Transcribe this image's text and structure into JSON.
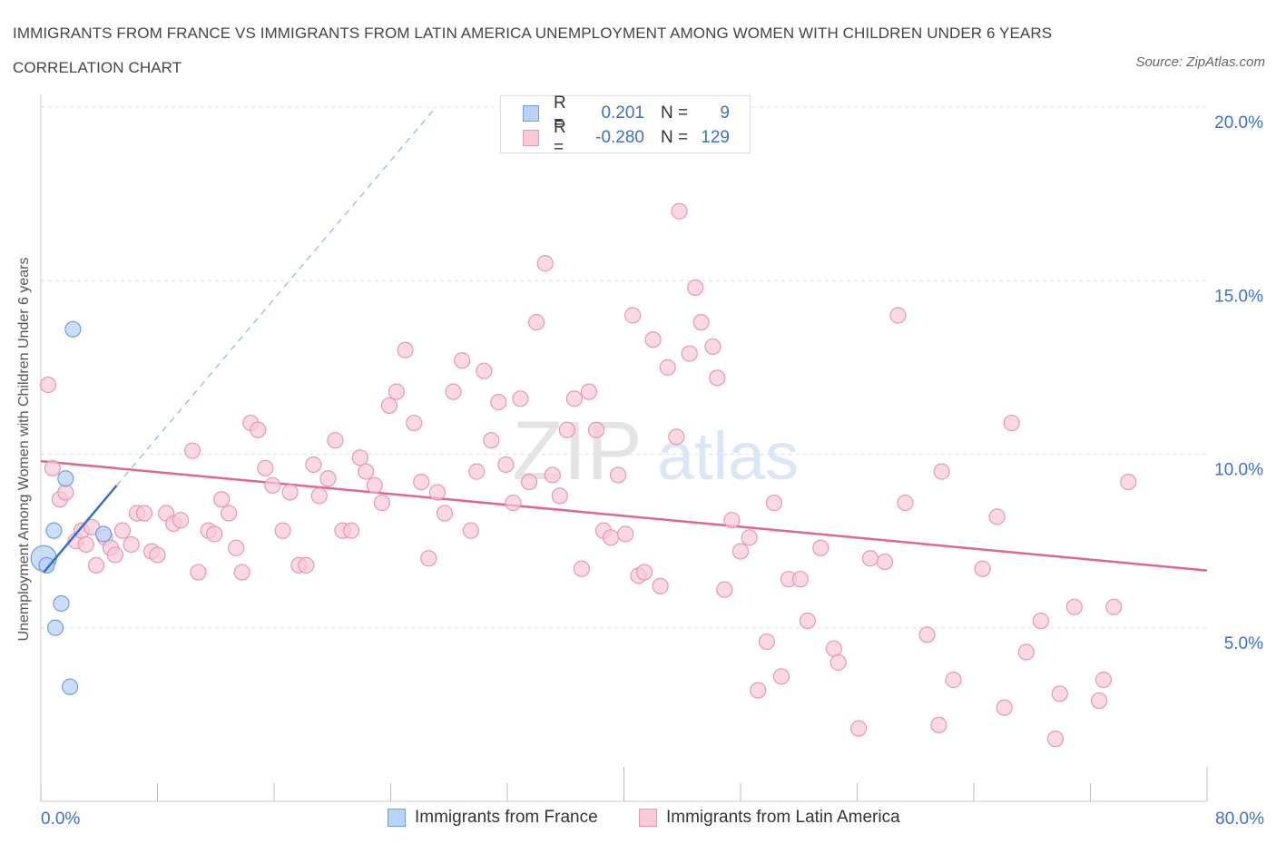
{
  "title": "IMMIGRANTS FROM FRANCE VS IMMIGRANTS FROM LATIN AMERICA UNEMPLOYMENT AMONG WOMEN WITH CHILDREN UNDER 6 YEARS CORRELATION CHART",
  "source": "Source: ZipAtlas.com",
  "watermark": {
    "zip": "ZIP",
    "atlas": "atlas"
  },
  "legend": {
    "rows": [
      {
        "r_label": "R =",
        "r_value": "0.201",
        "n_label": "N =",
        "n_value": "9",
        "fill": "#b8d3f5",
        "stroke": "#6f9fe0"
      },
      {
        "r_label": "R =",
        "r_value": "-0.280",
        "n_label": "N =",
        "n_value": "129",
        "fill": "#f8c9d7",
        "stroke": "#e799b2"
      }
    ]
  },
  "bottom_legend": {
    "france": "Immigrants from France",
    "latam": "Immigrants from Latin America"
  },
  "colors": {
    "france_fill": "#b8d3f5",
    "france_stroke": "#6f9fe0",
    "france_line": "#3470c9",
    "latam_fill": "#f8c9d7",
    "latam_stroke": "#e799b2",
    "latam_line": "#e0668f",
    "tick_text": "#3b72c4",
    "grid": "#dddddd"
  },
  "chart_data": {
    "type": "scatter",
    "xlabel": "",
    "ylabel": "Unemployment Among Women with Children Under 6 years",
    "xlim": [
      0,
      80
    ],
    "ylim": [
      0,
      20
    ],
    "x_tick_labels": [
      "0.0%",
      "80.0%"
    ],
    "y_ticks": [
      5,
      10,
      15,
      20
    ],
    "y_tick_labels": [
      "5.0%",
      "10.0%",
      "15.0%",
      "20.0%"
    ],
    "grid": true,
    "series": [
      {
        "name": "Immigrants from France",
        "points": [
          [
            0.2,
            7.0
          ],
          [
            0.4,
            6.8
          ],
          [
            0.9,
            7.8
          ],
          [
            1.0,
            5.0
          ],
          [
            1.4,
            5.7
          ],
          [
            1.7,
            9.3
          ],
          [
            2.0,
            3.3
          ],
          [
            2.2,
            13.6
          ],
          [
            4.3,
            7.7
          ]
        ],
        "trend": {
          "x0": 0.2,
          "y0": 6.6,
          "x1": 5.2,
          "y1": 9.1,
          "dashed_to_x": 27.1,
          "dashed_to_y": 20
        }
      },
      {
        "name": "Immigrants from Latin America",
        "points": [
          [
            0.5,
            12.0
          ],
          [
            0.8,
            9.6
          ],
          [
            1.3,
            8.7
          ],
          [
            1.7,
            8.9
          ],
          [
            2.4,
            7.5
          ],
          [
            2.8,
            7.8
          ],
          [
            3.1,
            7.4
          ],
          [
            3.5,
            7.9
          ],
          [
            3.8,
            6.8
          ],
          [
            4.4,
            7.6
          ],
          [
            4.8,
            7.3
          ],
          [
            5.1,
            7.1
          ],
          [
            5.6,
            7.8
          ],
          [
            6.2,
            7.4
          ],
          [
            6.6,
            8.3
          ],
          [
            7.1,
            8.3
          ],
          [
            7.6,
            7.2
          ],
          [
            8.0,
            7.1
          ],
          [
            8.6,
            8.3
          ],
          [
            9.1,
            8.0
          ],
          [
            9.6,
            8.1
          ],
          [
            10.4,
            10.1
          ],
          [
            10.8,
            6.6
          ],
          [
            11.5,
            7.8
          ],
          [
            11.9,
            7.7
          ],
          [
            12.4,
            8.7
          ],
          [
            12.9,
            8.3
          ],
          [
            13.4,
            7.3
          ],
          [
            13.8,
            6.6
          ],
          [
            14.4,
            10.9
          ],
          [
            14.9,
            10.7
          ],
          [
            15.4,
            9.6
          ],
          [
            15.9,
            9.1
          ],
          [
            16.6,
            7.8
          ],
          [
            17.1,
            8.9
          ],
          [
            17.7,
            6.8
          ],
          [
            18.2,
            6.8
          ],
          [
            18.7,
            9.7
          ],
          [
            19.1,
            8.8
          ],
          [
            19.7,
            9.3
          ],
          [
            20.2,
            10.4
          ],
          [
            20.7,
            7.8
          ],
          [
            21.3,
            7.8
          ],
          [
            21.9,
            9.9
          ],
          [
            22.3,
            9.5
          ],
          [
            22.9,
            9.1
          ],
          [
            23.4,
            8.6
          ],
          [
            23.9,
            11.4
          ],
          [
            24.4,
            11.8
          ],
          [
            25.0,
            13.0
          ],
          [
            25.6,
            10.9
          ],
          [
            26.1,
            9.2
          ],
          [
            26.6,
            7.0
          ],
          [
            27.2,
            8.9
          ],
          [
            27.7,
            8.3
          ],
          [
            28.3,
            11.8
          ],
          [
            28.9,
            12.7
          ],
          [
            29.5,
            7.8
          ],
          [
            29.9,
            9.5
          ],
          [
            30.4,
            12.4
          ],
          [
            30.9,
            10.4
          ],
          [
            31.4,
            11.5
          ],
          [
            31.9,
            9.7
          ],
          [
            32.4,
            8.6
          ],
          [
            32.9,
            11.6
          ],
          [
            33.5,
            9.2
          ],
          [
            34.0,
            13.8
          ],
          [
            34.6,
            15.5
          ],
          [
            35.1,
            9.4
          ],
          [
            35.6,
            8.8
          ],
          [
            36.1,
            10.7
          ],
          [
            36.6,
            11.6
          ],
          [
            37.1,
            6.7
          ],
          [
            37.6,
            11.8
          ],
          [
            38.1,
            10.7
          ],
          [
            38.6,
            7.8
          ],
          [
            39.1,
            7.6
          ],
          [
            39.6,
            9.4
          ],
          [
            40.1,
            7.7
          ],
          [
            40.6,
            14.0
          ],
          [
            41.0,
            6.5
          ],
          [
            41.4,
            6.6
          ],
          [
            42.0,
            13.3
          ],
          [
            42.5,
            6.2
          ],
          [
            43.0,
            12.5
          ],
          [
            43.6,
            10.5
          ],
          [
            43.8,
            17.0
          ],
          [
            44.5,
            12.9
          ],
          [
            44.9,
            14.8
          ],
          [
            45.3,
            13.8
          ],
          [
            46.1,
            13.1
          ],
          [
            46.4,
            12.2
          ],
          [
            46.9,
            6.1
          ],
          [
            47.4,
            8.1
          ],
          [
            48.0,
            7.2
          ],
          [
            48.6,
            7.6
          ],
          [
            49.2,
            3.2
          ],
          [
            49.8,
            4.6
          ],
          [
            50.3,
            8.6
          ],
          [
            50.8,
            3.6
          ],
          [
            51.3,
            6.4
          ],
          [
            52.1,
            6.4
          ],
          [
            52.6,
            5.2
          ],
          [
            53.5,
            7.3
          ],
          [
            54.4,
            4.4
          ],
          [
            54.7,
            4.0
          ],
          [
            56.1,
            2.1
          ],
          [
            56.9,
            7.0
          ],
          [
            57.9,
            6.9
          ],
          [
            58.8,
            14.0
          ],
          [
            59.3,
            8.6
          ],
          [
            60.8,
            4.8
          ],
          [
            61.6,
            2.2
          ],
          [
            61.8,
            9.5
          ],
          [
            62.6,
            3.5
          ],
          [
            64.6,
            6.7
          ],
          [
            65.6,
            8.2
          ],
          [
            66.1,
            2.7
          ],
          [
            66.6,
            10.9
          ],
          [
            67.6,
            4.3
          ],
          [
            68.6,
            5.2
          ],
          [
            69.6,
            1.8
          ],
          [
            69.9,
            3.1
          ],
          [
            70.9,
            5.6
          ],
          [
            72.6,
            2.9
          ],
          [
            72.9,
            3.5
          ],
          [
            73.6,
            5.6
          ],
          [
            74.6,
            9.2
          ]
        ],
        "trend": {
          "x0": 0,
          "y0": 9.8,
          "x1": 80,
          "y1": 6.65
        }
      }
    ]
  }
}
